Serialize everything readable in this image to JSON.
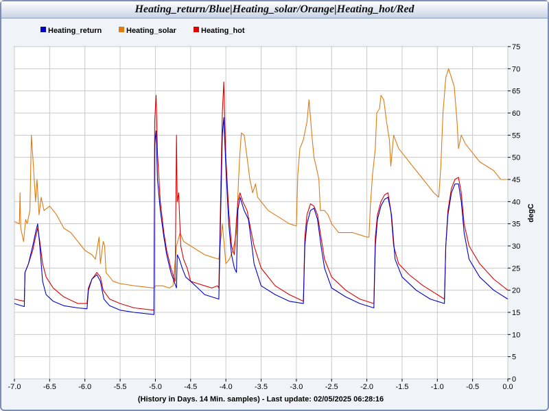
{
  "window": {
    "title": "Heating_return/Blue|Heating_solar/Orange|Heating_hot/Red"
  },
  "chart_data": {
    "type": "line",
    "xlabel": "(History in Days. 14 Min. samples) - Last update: 02/05/2025 06:28:16",
    "ylabel": "degC",
    "xlim": [
      -7.0,
      0.0
    ],
    "ylim": [
      0,
      75
    ],
    "grid": true,
    "legend_position": "top-left",
    "x_ticks": [
      "-7.0",
      "-6.5",
      "-6.0",
      "-5.5",
      "-5.0",
      "-4.5",
      "-4.0",
      "-3.5",
      "-3.0",
      "-2.5",
      "-2.0",
      "-1.5",
      "-1.0",
      "-0.5",
      "0.0"
    ],
    "y_ticks": [
      "0",
      "5",
      "10",
      "15",
      "20",
      "25",
      "30",
      "35",
      "40",
      "45",
      "50",
      "55",
      "60",
      "65",
      "70",
      "75"
    ],
    "series": [
      {
        "name": "Heating_return",
        "color": "#0000cc",
        "points": [
          [
            -7.0,
            17
          ],
          [
            -6.86,
            16.3
          ],
          [
            -6.85,
            24
          ],
          [
            -6.8,
            26
          ],
          [
            -6.74,
            30
          ],
          [
            -6.7,
            33
          ],
          [
            -6.67,
            35
          ],
          [
            -6.64,
            30
          ],
          [
            -6.6,
            22
          ],
          [
            -6.55,
            19
          ],
          [
            -6.45,
            17.5
          ],
          [
            -6.3,
            16.5
          ],
          [
            -6.1,
            16
          ],
          [
            -5.97,
            15.8
          ],
          [
            -5.95,
            20
          ],
          [
            -5.9,
            22.5
          ],
          [
            -5.83,
            23.5
          ],
          [
            -5.78,
            22
          ],
          [
            -5.73,
            18
          ],
          [
            -5.65,
            16.5
          ],
          [
            -5.5,
            15.5
          ],
          [
            -5.3,
            15
          ],
          [
            -5.02,
            14.5
          ],
          [
            -5.01,
            53
          ],
          [
            -4.99,
            56
          ],
          [
            -4.97,
            45
          ],
          [
            -4.93,
            38
          ],
          [
            -4.88,
            32
          ],
          [
            -4.84,
            28
          ],
          [
            -4.78,
            24
          ],
          [
            -4.7,
            20.5
          ],
          [
            -4.69,
            28
          ],
          [
            -4.66,
            27
          ],
          [
            -4.62,
            25
          ],
          [
            -4.57,
            23
          ],
          [
            -4.5,
            22
          ],
          [
            -4.4,
            20.5
          ],
          [
            -4.3,
            19
          ],
          [
            -4.2,
            18.5
          ],
          [
            -4.1,
            18
          ],
          [
            -4.05,
            55
          ],
          [
            -4.03,
            59
          ],
          [
            -4.0,
            48
          ],
          [
            -3.96,
            35
          ],
          [
            -3.92,
            28
          ],
          [
            -3.88,
            25
          ],
          [
            -3.85,
            24
          ],
          [
            -3.83,
            38
          ],
          [
            -3.8,
            41
          ],
          [
            -3.78,
            40
          ],
          [
            -3.74,
            38
          ],
          [
            -3.68,
            36
          ],
          [
            -3.63,
            30
          ],
          [
            -3.6,
            26
          ],
          [
            -3.5,
            21
          ],
          [
            -3.3,
            19
          ],
          [
            -3.1,
            17.5
          ],
          [
            -2.9,
            17
          ],
          [
            -2.88,
            30
          ],
          [
            -2.85,
            35
          ],
          [
            -2.8,
            38
          ],
          [
            -2.75,
            38.5
          ],
          [
            -2.7,
            36
          ],
          [
            -2.65,
            30
          ],
          [
            -2.6,
            25
          ],
          [
            -2.5,
            20.5
          ],
          [
            -2.3,
            18.5
          ],
          [
            -2.1,
            17
          ],
          [
            -1.9,
            16
          ],
          [
            -1.88,
            30
          ],
          [
            -1.85,
            36
          ],
          [
            -1.8,
            39
          ],
          [
            -1.75,
            40.5
          ],
          [
            -1.7,
            41
          ],
          [
            -1.65,
            37
          ],
          [
            -1.6,
            27
          ],
          [
            -1.5,
            23
          ],
          [
            -1.3,
            20
          ],
          [
            -1.1,
            18
          ],
          [
            -0.9,
            17
          ],
          [
            -0.88,
            30
          ],
          [
            -0.85,
            37
          ],
          [
            -0.8,
            42
          ],
          [
            -0.75,
            44
          ],
          [
            -0.7,
            44
          ],
          [
            -0.66,
            40
          ],
          [
            -0.62,
            33
          ],
          [
            -0.55,
            27
          ],
          [
            -0.4,
            23
          ],
          [
            -0.2,
            20
          ],
          [
            0.0,
            18
          ]
        ]
      },
      {
        "name": "Heating_solar",
        "color": "#e07a10",
        "points": [
          [
            -7.0,
            35.5
          ],
          [
            -6.93,
            35
          ],
          [
            -6.92,
            42
          ],
          [
            -6.91,
            34
          ],
          [
            -6.87,
            31
          ],
          [
            -6.84,
            36
          ],
          [
            -6.82,
            35
          ],
          [
            -6.78,
            38
          ],
          [
            -6.76,
            55
          ],
          [
            -6.73,
            48
          ],
          [
            -6.7,
            40
          ],
          [
            -6.68,
            45
          ],
          [
            -6.65,
            37
          ],
          [
            -6.62,
            41
          ],
          [
            -6.58,
            38
          ],
          [
            -6.5,
            39
          ],
          [
            -6.4,
            37
          ],
          [
            -6.3,
            34
          ],
          [
            -6.2,
            33
          ],
          [
            -6.1,
            31
          ],
          [
            -6.0,
            29
          ],
          [
            -5.9,
            28
          ],
          [
            -5.85,
            27
          ],
          [
            -5.8,
            32
          ],
          [
            -5.78,
            26
          ],
          [
            -5.74,
            31
          ],
          [
            -5.72,
            30
          ],
          [
            -5.7,
            24
          ],
          [
            -5.6,
            22
          ],
          [
            -5.5,
            21.5
          ],
          [
            -5.3,
            21
          ],
          [
            -5.02,
            20.5
          ],
          [
            -5.0,
            21
          ],
          [
            -4.9,
            21
          ],
          [
            -4.8,
            20.5
          ],
          [
            -4.75,
            21
          ],
          [
            -4.7,
            30
          ],
          [
            -4.65,
            33
          ],
          [
            -4.6,
            31
          ],
          [
            -4.5,
            30
          ],
          [
            -4.4,
            29
          ],
          [
            -4.3,
            28
          ],
          [
            -4.2,
            27.5
          ],
          [
            -4.1,
            27
          ],
          [
            -4.05,
            35
          ],
          [
            -4.0,
            26
          ],
          [
            -3.95,
            27
          ],
          [
            -3.9,
            29
          ],
          [
            -3.85,
            33
          ],
          [
            -3.82,
            45
          ],
          [
            -3.8,
            51
          ],
          [
            -3.78,
            55.5
          ],
          [
            -3.74,
            55
          ],
          [
            -3.7,
            50
          ],
          [
            -3.66,
            45
          ],
          [
            -3.62,
            42
          ],
          [
            -3.58,
            44
          ],
          [
            -3.55,
            41
          ],
          [
            -3.5,
            40
          ],
          [
            -3.4,
            38
          ],
          [
            -3.3,
            37
          ],
          [
            -3.2,
            36
          ],
          [
            -3.1,
            35
          ],
          [
            -3.0,
            34.5
          ],
          [
            -2.98,
            46
          ],
          [
            -2.95,
            52
          ],
          [
            -2.9,
            54
          ],
          [
            -2.85,
            58
          ],
          [
            -2.82,
            63
          ],
          [
            -2.78,
            55
          ],
          [
            -2.75,
            50
          ],
          [
            -2.72,
            48
          ],
          [
            -2.68,
            45
          ],
          [
            -2.66,
            38
          ],
          [
            -2.6,
            38
          ],
          [
            -2.55,
            37
          ],
          [
            -2.5,
            35
          ],
          [
            -2.4,
            33
          ],
          [
            -2.3,
            33
          ],
          [
            -2.2,
            33
          ],
          [
            -2.1,
            32.5
          ],
          [
            -2.0,
            32
          ],
          [
            -1.97,
            32
          ],
          [
            -1.95,
            39
          ],
          [
            -1.92,
            46
          ],
          [
            -1.88,
            52
          ],
          [
            -1.86,
            60
          ],
          [
            -1.82,
            61
          ],
          [
            -1.8,
            64
          ],
          [
            -1.76,
            63
          ],
          [
            -1.72,
            58
          ],
          [
            -1.68,
            54
          ],
          [
            -1.66,
            48
          ],
          [
            -1.62,
            55
          ],
          [
            -1.55,
            52
          ],
          [
            -1.45,
            50
          ],
          [
            -1.35,
            48
          ],
          [
            -1.25,
            46
          ],
          [
            -1.15,
            44
          ],
          [
            -1.05,
            42
          ],
          [
            -0.98,
            41
          ],
          [
            -0.95,
            48
          ],
          [
            -0.92,
            60
          ],
          [
            -0.88,
            68
          ],
          [
            -0.84,
            70
          ],
          [
            -0.8,
            68
          ],
          [
            -0.76,
            66
          ],
          [
            -0.72,
            58
          ],
          [
            -0.7,
            52
          ],
          [
            -0.66,
            55
          ],
          [
            -0.6,
            53
          ],
          [
            -0.5,
            51
          ],
          [
            -0.4,
            49
          ],
          [
            -0.3,
            48
          ],
          [
            -0.2,
            47
          ],
          [
            -0.1,
            45
          ],
          [
            0.0,
            45
          ]
        ]
      },
      {
        "name": "Heating_hot",
        "color": "#dd0000",
        "points": [
          [
            -7.0,
            18
          ],
          [
            -6.86,
            17.5
          ],
          [
            -6.85,
            24
          ],
          [
            -6.8,
            26
          ],
          [
            -6.74,
            29
          ],
          [
            -6.7,
            32
          ],
          [
            -6.67,
            34
          ],
          [
            -6.64,
            31
          ],
          [
            -6.6,
            26
          ],
          [
            -6.55,
            23
          ],
          [
            -6.45,
            20.5
          ],
          [
            -6.3,
            18.5
          ],
          [
            -6.1,
            17
          ],
          [
            -5.97,
            17
          ],
          [
            -5.95,
            20.5
          ],
          [
            -5.9,
            22.5
          ],
          [
            -5.83,
            24
          ],
          [
            -5.78,
            23
          ],
          [
            -5.74,
            20
          ],
          [
            -5.65,
            18
          ],
          [
            -5.5,
            17
          ],
          [
            -5.3,
            16
          ],
          [
            -5.02,
            15.5
          ],
          [
            -5.01,
            58
          ],
          [
            -4.99,
            64
          ],
          [
            -4.97,
            51
          ],
          [
            -4.93,
            40
          ],
          [
            -4.88,
            33
          ],
          [
            -4.84,
            29
          ],
          [
            -4.78,
            25
          ],
          [
            -4.72,
            22
          ],
          [
            -4.7,
            55
          ],
          [
            -4.69,
            40
          ],
          [
            -4.67,
            42
          ],
          [
            -4.64,
            30
          ],
          [
            -4.6,
            27
          ],
          [
            -4.55,
            25
          ],
          [
            -4.5,
            22
          ],
          [
            -4.4,
            21.5
          ],
          [
            -4.3,
            21
          ],
          [
            -4.2,
            20.5
          ],
          [
            -4.12,
            21
          ],
          [
            -4.1,
            20.5
          ],
          [
            -4.05,
            60
          ],
          [
            -4.03,
            67
          ],
          [
            -4.0,
            50
          ],
          [
            -3.96,
            38
          ],
          [
            -3.92,
            30
          ],
          [
            -3.88,
            28
          ],
          [
            -3.85,
            36
          ],
          [
            -3.83,
            40
          ],
          [
            -3.8,
            42
          ],
          [
            -3.76,
            40
          ],
          [
            -3.7,
            38
          ],
          [
            -3.65,
            34
          ],
          [
            -3.6,
            30
          ],
          [
            -3.5,
            25
          ],
          [
            -3.3,
            21
          ],
          [
            -3.1,
            19
          ],
          [
            -2.9,
            17.5
          ],
          [
            -2.88,
            32
          ],
          [
            -2.85,
            37
          ],
          [
            -2.8,
            39.5
          ],
          [
            -2.75,
            39
          ],
          [
            -2.7,
            37
          ],
          [
            -2.65,
            32
          ],
          [
            -2.6,
            27
          ],
          [
            -2.5,
            23
          ],
          [
            -2.3,
            20
          ],
          [
            -2.1,
            18
          ],
          [
            -1.9,
            17
          ],
          [
            -1.88,
            32
          ],
          [
            -1.85,
            37
          ],
          [
            -1.8,
            40
          ],
          [
            -1.75,
            41.5
          ],
          [
            -1.7,
            42
          ],
          [
            -1.66,
            38
          ],
          [
            -1.62,
            30
          ],
          [
            -1.55,
            26
          ],
          [
            -1.4,
            23.5
          ],
          [
            -1.2,
            21
          ],
          [
            -1.0,
            19
          ],
          [
            -0.9,
            18
          ],
          [
            -0.88,
            30
          ],
          [
            -0.85,
            38
          ],
          [
            -0.8,
            43
          ],
          [
            -0.75,
            45
          ],
          [
            -0.7,
            45.5
          ],
          [
            -0.66,
            42
          ],
          [
            -0.62,
            35
          ],
          [
            -0.55,
            30
          ],
          [
            -0.4,
            26
          ],
          [
            -0.2,
            22.5
          ],
          [
            0.0,
            20
          ]
        ]
      }
    ]
  }
}
